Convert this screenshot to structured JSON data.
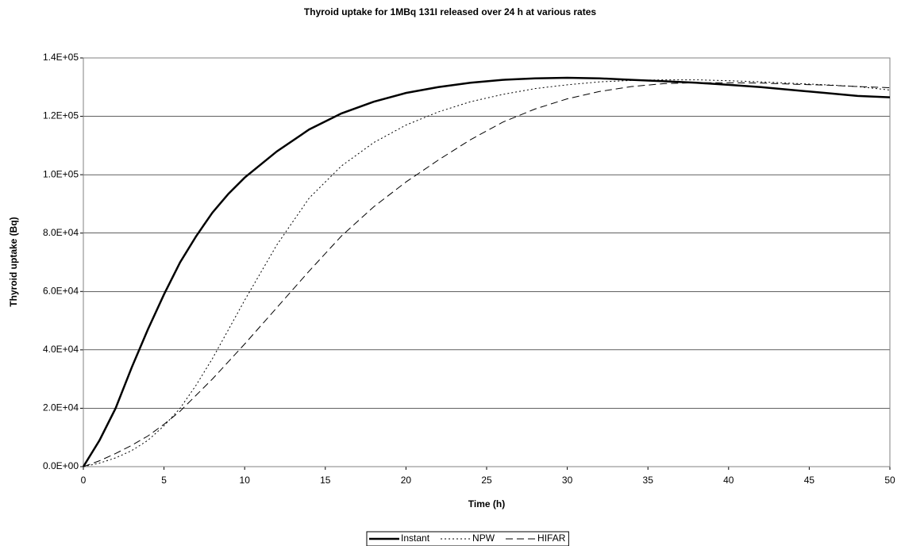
{
  "chart_data": {
    "type": "line",
    "title": "Thyroid uptake for 1MBq 131I released over 24 h at various rates",
    "xlabel": "Time (h)",
    "ylabel": "Thyroid uptake (Bq)",
    "x": [
      0,
      1,
      2,
      3,
      4,
      5,
      6,
      7,
      8,
      9,
      10,
      12,
      14,
      16,
      18,
      20,
      22,
      24,
      26,
      28,
      30,
      32,
      34,
      36,
      38,
      40,
      42,
      44,
      46,
      48,
      50
    ],
    "series": [
      {
        "name": "Instant",
        "color": "#000000",
        "dash": "solid",
        "width": 2.5,
        "values": [
          0,
          9000,
          20000,
          34000,
          47000,
          59000,
          70000,
          79000,
          87000,
          93500,
          99000,
          108000,
          115500,
          121000,
          125000,
          128000,
          130000,
          131500,
          132500,
          133000,
          133200,
          133000,
          132500,
          132000,
          131500,
          130800,
          130000,
          129000,
          128000,
          127000,
          126500
        ]
      },
      {
        "name": "NPW",
        "color": "#000000",
        "dash": "dotted",
        "width": 1,
        "values": [
          0,
          1200,
          3000,
          5500,
          9000,
          14000,
          20000,
          28000,
          37000,
          47000,
          57000,
          76000,
          92000,
          103000,
          111000,
          117000,
          121500,
          125000,
          127500,
          129500,
          130800,
          131800,
          132300,
          132500,
          132500,
          132200,
          131800,
          131300,
          130800,
          130200,
          129000
        ]
      },
      {
        "name": "HIFAR",
        "color": "#000000",
        "dash": "dashed",
        "width": 1,
        "values": [
          0,
          2000,
          4500,
          7300,
          10500,
          14500,
          19000,
          24500,
          30000,
          36000,
          42000,
          54500,
          67000,
          79000,
          89000,
          97500,
          105000,
          112000,
          118000,
          122500,
          126000,
          128500,
          130200,
          131200,
          131500,
          131500,
          131400,
          131000,
          130700,
          130200,
          129800
        ]
      }
    ],
    "xlim": [
      0,
      50
    ],
    "xticks": [
      0,
      5,
      10,
      15,
      20,
      25,
      30,
      35,
      40,
      45,
      50
    ],
    "ylim": [
      0,
      140000
    ],
    "yticks": [
      {
        "value": 0,
        "label": "0.0E+00"
      },
      {
        "value": 20000,
        "label": "2.0E+04"
      },
      {
        "value": 40000,
        "label": "4.0E+04"
      },
      {
        "value": 60000,
        "label": "6.0E+04"
      },
      {
        "value": 80000,
        "label": "8.0E+04"
      },
      {
        "value": 100000,
        "label": "1.0E+05"
      },
      {
        "value": 120000,
        "label": "1.2E+05"
      },
      {
        "value": 140000,
        "label": "1.4E+05"
      }
    ],
    "grid": true,
    "legend": "bottom"
  }
}
